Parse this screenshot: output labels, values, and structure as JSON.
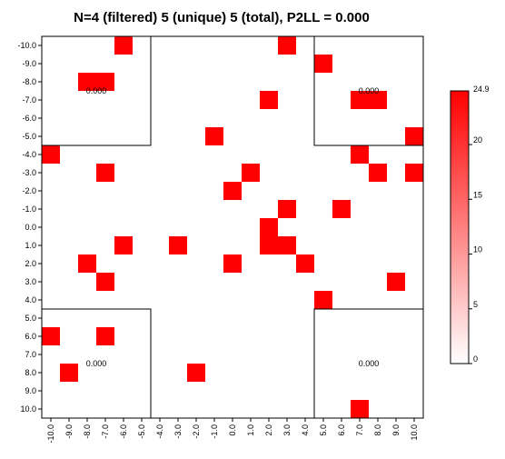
{
  "chart_data": {
    "type": "heatmap",
    "title": "N=4 (filtered) 5 (unique) 5 (total), P2LL = 0.000",
    "x_ticks": [
      "-10.0",
      "-9.0",
      "-8.0",
      "-7.0",
      "-6.0",
      "-5.0",
      "-4.0",
      "-3.0",
      "-2.0",
      "-1.0",
      "0.0",
      "1.0",
      "2.0",
      "3.0",
      "4.0",
      "5.0",
      "6.0",
      "7.0",
      "8.0",
      "9.0",
      "10.0"
    ],
    "y_ticks": [
      "-10.0",
      "-9.0",
      "-8.0",
      "-7.0",
      "-6.0",
      "-5.0",
      "-4.0",
      "-3.0",
      "-2.0",
      "-1.0",
      "0.0",
      "1.0",
      "2.0",
      "3.0",
      "4.0",
      "5.0",
      "6.0",
      "7.0",
      "8.0",
      "9.0",
      "10.0"
    ],
    "xlim": [
      -10,
      10
    ],
    "ylim": [
      -10,
      10
    ],
    "y_direction": "down",
    "cell_color": "#ff0000",
    "colorbar": {
      "min": 0,
      "max": 24.9,
      "max_label": "24.9",
      "ticks": [
        {
          "value": 0,
          "label": "0"
        },
        {
          "value": 5,
          "label": "5"
        },
        {
          "value": 10,
          "label": "10"
        },
        {
          "value": 15,
          "label": "15"
        },
        {
          "value": 20,
          "label": "20"
        }
      ],
      "color_low": "#ffffff",
      "color_high": "#ff0000"
    },
    "quadrant_boxes": [
      {
        "x": [
          -10,
          -5
        ],
        "y": [
          -10,
          -5
        ],
        "label": "0.000"
      },
      {
        "x": [
          5,
          10
        ],
        "y": [
          -10,
          -5
        ],
        "label": "0.000"
      },
      {
        "x": [
          -10,
          -5
        ],
        "y": [
          5,
          10
        ],
        "label": "0.000"
      },
      {
        "x": [
          5,
          10
        ],
        "y": [
          5,
          10
        ],
        "label": "0.000"
      }
    ],
    "cells": [
      [
        -6,
        -10
      ],
      [
        3,
        -10
      ],
      [
        5,
        -9
      ],
      [
        -8,
        -8
      ],
      [
        -7,
        -8
      ],
      [
        2,
        -7
      ],
      [
        7,
        -7
      ],
      [
        8,
        -7
      ],
      [
        -1,
        -5
      ],
      [
        10,
        -5
      ],
      [
        -10,
        -4
      ],
      [
        7,
        -4
      ],
      [
        -7,
        -3
      ],
      [
        1,
        -3
      ],
      [
        8,
        -3
      ],
      [
        10,
        -3
      ],
      [
        0,
        -2
      ],
      [
        3,
        -1
      ],
      [
        6,
        -1
      ],
      [
        2,
        0
      ],
      [
        -6,
        1
      ],
      [
        -3,
        1
      ],
      [
        2,
        1
      ],
      [
        3,
        1
      ],
      [
        -8,
        2
      ],
      [
        0,
        2
      ],
      [
        4,
        2
      ],
      [
        -7,
        3
      ],
      [
        9,
        3
      ],
      [
        5,
        4
      ],
      [
        -10,
        6
      ],
      [
        -7,
        6
      ],
      [
        -9,
        8
      ],
      [
        -2,
        8
      ],
      [
        7,
        10
      ]
    ]
  }
}
